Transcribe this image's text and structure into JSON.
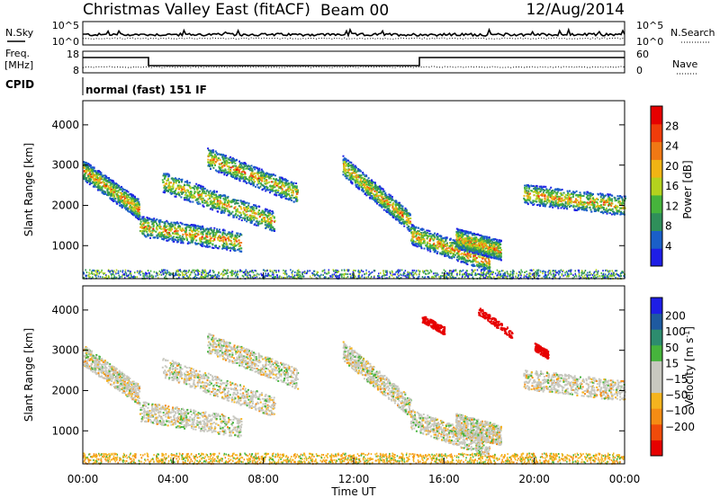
{
  "header": {
    "title": "Christmas Valley East (fitACF)",
    "beam": "Beam 00",
    "date": "12/Aug/2014"
  },
  "noise_panel": {
    "left_label": "N.Sky",
    "right_label": "N.Search",
    "left_ticks": [
      "10^5",
      "10^0"
    ],
    "right_ticks": [
      "10^5",
      "10^0"
    ]
  },
  "freq_panel": {
    "left_label_top": "Freq.",
    "left_label_bottom": "[MHz]",
    "right_label": "Nave",
    "left_ticks": [
      "18",
      "8"
    ],
    "right_ticks": [
      "60",
      "0"
    ]
  },
  "cpid": {
    "label": "CPID",
    "value": "normal (fast) 151 IF"
  },
  "colors": {
    "power": [
      "#1e1ee6",
      "#1a5fc8",
      "#2f8f5a",
      "#46b43c",
      "#b4d21e",
      "#f0b414",
      "#f07814",
      "#f03c0a",
      "#e60000"
    ],
    "velocity": [
      "#e60000",
      "#f04b0a",
      "#f58c14",
      "#f5b41e",
      "#c8c8c0",
      "#c8c8c0",
      "#46b43c",
      "#2d8c6e",
      "#1e5aa0",
      "#1e1ee6"
    ]
  },
  "chart_data": [
    {
      "type": "heatmap",
      "name": "power",
      "xlabel": "",
      "ylabel": "Slant Range [km]",
      "ylim": [
        180,
        4600
      ],
      "yticks": [
        1000,
        2000,
        3000,
        4000
      ],
      "xlim_hours": [
        0,
        24
      ],
      "colorbar": {
        "label": "Power [dB]",
        "range": [
          0,
          32
        ],
        "ticks": [
          4,
          8,
          12,
          16,
          20,
          24,
          28
        ]
      },
      "echo_bands": [
        {
          "t0": 0.0,
          "t1": 2.5,
          "r0": 2900,
          "r1": 1900
        },
        {
          "t0": 2.5,
          "t1": 7.0,
          "r0": 1500,
          "r1": 1100
        },
        {
          "t0": 3.5,
          "t1": 8.5,
          "r0": 2600,
          "r1": 1600
        },
        {
          "t0": 5.5,
          "t1": 9.5,
          "r0": 3200,
          "r1": 2300
        },
        {
          "t0": 11.5,
          "t1": 14.5,
          "r0": 3000,
          "r1": 1600
        },
        {
          "t0": 14.5,
          "t1": 18.0,
          "r0": 1300,
          "r1": 600
        },
        {
          "t0": 16.5,
          "t1": 18.5,
          "r0": 1200,
          "r1": 900
        },
        {
          "t0": 19.5,
          "t1": 24.0,
          "r0": 2300,
          "r1": 2000
        }
      ]
    },
    {
      "type": "heatmap",
      "name": "velocity",
      "xlabel": "Time UT",
      "ylabel": "Slant Range [km]",
      "ylim": [
        180,
        4600
      ],
      "yticks": [
        1000,
        2000,
        3000,
        4000
      ],
      "xlim_hours": [
        0,
        24
      ],
      "xticks": [
        "00:00",
        "04:00",
        "08:00",
        "12:00",
        "16:00",
        "20:00",
        "00:00"
      ],
      "colorbar": {
        "label": "Velocity [m s^-1]",
        "ticks": [
          200,
          100,
          50,
          15,
          -15,
          -50,
          -100,
          -200
        ]
      },
      "echo_bands": [
        {
          "t0": 15.0,
          "t1": 16.0,
          "r0": 3800,
          "r1": 3500
        },
        {
          "t0": 17.5,
          "t1": 19.0,
          "r0": 4000,
          "r1": 3400
        },
        {
          "t0": 20.0,
          "t1": 20.6,
          "r0": 3100,
          "r1": 2900
        }
      ]
    }
  ]
}
